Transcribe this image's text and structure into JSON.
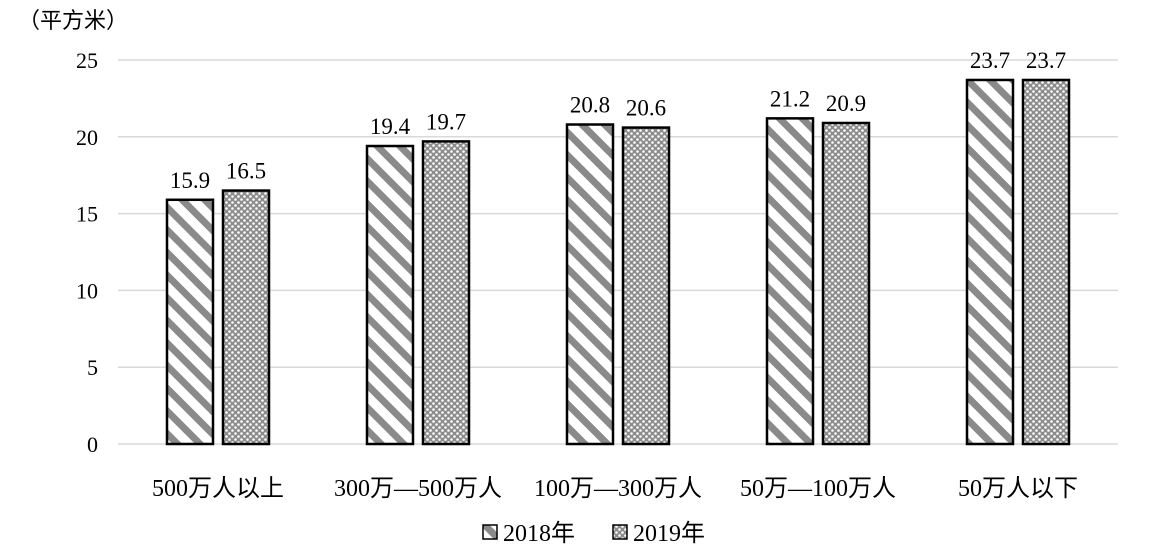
{
  "chart_data": {
    "type": "bar",
    "title": "",
    "unit_label": "（平方米）",
    "xlabel": "",
    "ylabel": "",
    "categories": [
      "500万人以上",
      "300万—500万人",
      "100万—300万人",
      "50万—100万人",
      "50万人以下"
    ],
    "series": [
      {
        "name": "2018年",
        "values": [
          15.9,
          19.4,
          20.8,
          21.2,
          23.7
        ],
        "pattern": "diagonal-stripes"
      },
      {
        "name": "2019年",
        "values": [
          16.5,
          19.7,
          20.6,
          20.9,
          23.7
        ],
        "pattern": "dots"
      }
    ],
    "ylim": [
      0,
      25
    ],
    "yticks": [
      0,
      5,
      10,
      15,
      20,
      25
    ],
    "grid": true,
    "legend_position": "bottom",
    "data_labels": true
  }
}
